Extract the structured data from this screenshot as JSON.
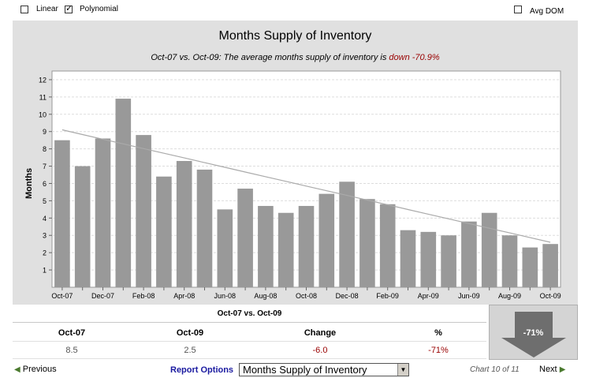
{
  "options": {
    "linear_label": "Linear",
    "linear_checked": false,
    "polynomial_label": "Polynomial",
    "polynomial_checked": true,
    "avgdom_label": "Avg DOM",
    "avgdom_checked": false
  },
  "chart_data": {
    "type": "bar",
    "title": "Months Supply of Inventory",
    "subtitle_prefix": "Oct-07 vs. Oct-09: The average months supply of inventory is ",
    "subtitle_direction": "down -70.9%",
    "xlabel": "",
    "ylabel": "Months",
    "ylim": [
      0,
      12.5
    ],
    "yticks": [
      1,
      2,
      3,
      4,
      5,
      6,
      7,
      8,
      9,
      10,
      11,
      12
    ],
    "categories": [
      "Oct-07",
      "Nov-07",
      "Dec-07",
      "Jan-08",
      "Feb-08",
      "Mar-08",
      "Apr-08",
      "May-08",
      "Jun-08",
      "Jul-08",
      "Aug-08",
      "Sep-08",
      "Oct-08",
      "Nov-08",
      "Dec-08",
      "Jan-09",
      "Feb-09",
      "Mar-09",
      "Apr-09",
      "May-09",
      "Jun-09",
      "Jul-09",
      "Aug-09",
      "Sep-09",
      "Oct-09"
    ],
    "xtick_labels": [
      "Oct-07",
      "Dec-07",
      "Feb-08",
      "Apr-08",
      "Jun-08",
      "Aug-08",
      "Oct-08",
      "Dec-08",
      "Feb-09",
      "Apr-09",
      "Jun-09",
      "Aug-09",
      "Oct-09"
    ],
    "values": [
      8.5,
      7.0,
      8.6,
      10.9,
      8.8,
      6.4,
      7.3,
      6.8,
      4.5,
      5.7,
      4.7,
      4.3,
      4.7,
      5.4,
      6.1,
      5.1,
      4.8,
      3.3,
      3.2,
      3.0,
      3.8,
      4.3,
      3.0,
      2.3,
      2.5
    ],
    "trend": {
      "type": "polynomial",
      "start": 9.1,
      "end": 2.6
    },
    "bar_color": "#999999",
    "trend_color": "#aaaaaa",
    "grid": true,
    "legend": "none"
  },
  "summary": {
    "title": "Oct-07 vs. Oct-09",
    "headers": [
      "Oct-07",
      "Oct-09",
      "Change",
      "%"
    ],
    "values": [
      "8.5",
      "2.5",
      "-6.0",
      "-71%"
    ]
  },
  "indicator": {
    "label": "-71%",
    "direction": "down",
    "color": "#6e6e6e"
  },
  "footer": {
    "previous_label": "Previous",
    "report_options_label": "Report Options",
    "selected_report": "Months Supply of Inventory",
    "chart_position": "Chart 10 of 11",
    "next_label": "Next"
  }
}
